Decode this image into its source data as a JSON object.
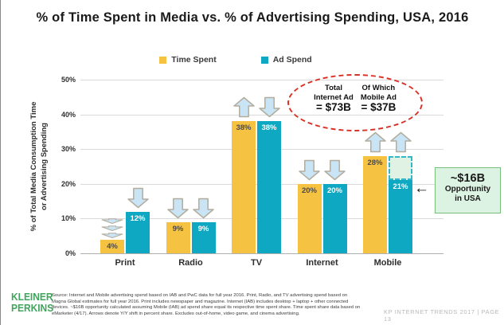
{
  "title": "% of Time Spent in Media vs. % of Advertising Spending, USA, 2016",
  "colors": {
    "time_spent_yellow": "#F6C242",
    "ad_spend_teal": "#0FA8C2",
    "arrow_fill": "#C9E5F5",
    "arrow_stroke": "#B3AC9D",
    "oval_red": "#D93025",
    "opportunity_green_border": "#79BE7C",
    "opportunity_green_fill": "#DCF2E2",
    "kp_logo_green": "#3FA45C"
  },
  "chart_data": {
    "type": "bar",
    "title": "% of Time Spent in Media vs. % of Advertising Spending, USA, 2016",
    "categories": [
      "Print",
      "Radio",
      "TV",
      "Internet",
      "Mobile"
    ],
    "series": [
      {
        "name": "Time Spent",
        "color": "#F6C242",
        "label_color": "#4A4A4A",
        "values": [
          4,
          9,
          38,
          20,
          28
        ],
        "yoy_trend": [
          "down-stack",
          "down",
          "up",
          "down",
          "up"
        ]
      },
      {
        "name": "Ad Spend",
        "color": "#0FA8C2",
        "label_color": "#FFFFFF",
        "values": [
          12,
          9,
          38,
          20,
          21
        ],
        "yoy_trend": [
          "down",
          "down",
          "down",
          "down",
          "up"
        ]
      }
    ],
    "xlabel": "",
    "ylabel": "% of Total Media Consumption Time or Advertising Spending",
    "ylabel_lines": [
      "% of Total Media Consumption Time",
      "or Advertising Spending"
    ],
    "yticks": [
      "0%",
      "10%",
      "20%",
      "30%",
      "40%",
      "50%"
    ],
    "ylim": [
      0,
      50
    ],
    "grid": true,
    "legend_position": "top"
  },
  "annotations": {
    "internet_ad_oval": {
      "col1": {
        "line1": "Total",
        "line2": "Internet Ad",
        "value": "= $73B"
      },
      "col2": {
        "line1": "Of Which",
        "line2": "Mobile Ad",
        "value": "= $37B"
      }
    },
    "opportunity_box": {
      "value": "~$16B",
      "line2": "Opportunity",
      "line3": "in USA"
    },
    "opportunity_gap": {
      "category": "Mobile",
      "series": "Ad Spend",
      "from": 21,
      "to": 28
    }
  },
  "footer": {
    "logo": [
      "KLEINER",
      "PERKINS"
    ],
    "source": "Source: Internet and Mobile advertising spend based on IAB and PwC data for full year 2016. Print, Radio, and TV advertising spend based on Magna Global estimates for full year 2016. Print includes newspaper and magazine. Internet (IAB) includes desktop + laptop + other connected devices. ~$16B opportunity calculated assuming Mobile (IAB) ad spend share equal its respective time spent share. Time spent share data based on eMarketer (4/17). Arrows denote Y/Y shift in percent share. Excludes out-of-home, video game, and cinema advertising.",
    "page_label": "KP INTERNET TRENDS 2017   |   PAGE 13"
  }
}
